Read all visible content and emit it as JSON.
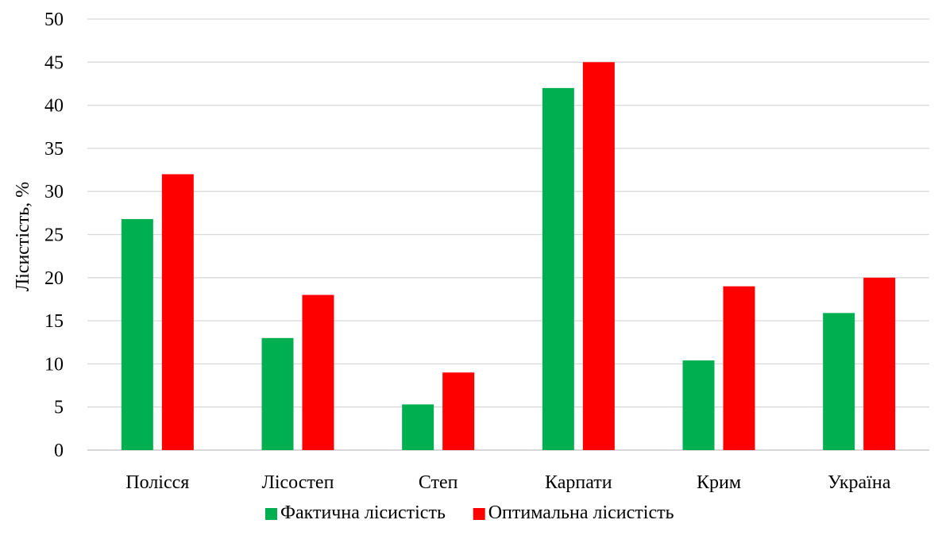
{
  "chart_data": {
    "type": "bar",
    "categories": [
      "Полісся",
      "Лісостеп",
      "Степ",
      "Карпати",
      "Крим",
      "Україна"
    ],
    "series": [
      {
        "name": "Фактична лісистість",
        "color": "#00b050",
        "values": [
          26.8,
          13.0,
          5.3,
          42.0,
          10.4,
          15.9
        ]
      },
      {
        "name": "Оптимальна лісистість",
        "color": "#ff0000",
        "values": [
          32,
          18,
          9,
          45,
          19,
          20
        ]
      }
    ],
    "ylabel": "Лісистість, %",
    "xlabel": "",
    "ylim": [
      0,
      50
    ],
    "yticks": [
      0,
      5,
      10,
      15,
      20,
      25,
      30,
      35,
      40,
      45,
      50
    ],
    "grid": true,
    "legend_position": "bottom"
  }
}
